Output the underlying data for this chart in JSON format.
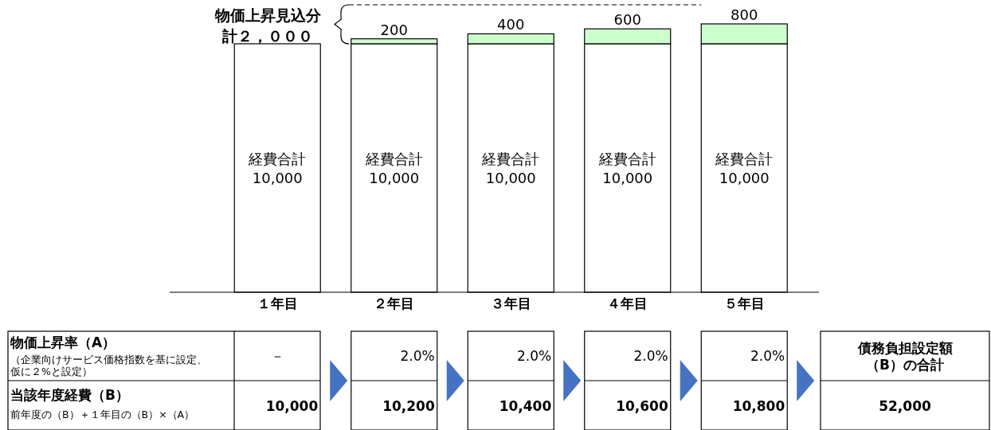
{
  "chart_data": {
    "type": "bar",
    "stacked": true,
    "categories": [
      "１年目",
      "２年目",
      "３年目",
      "４年目",
      "５年目"
    ],
    "series": [
      {
        "name": null,
        "color": "#ffffff",
        "values": [
          10000,
          10000,
          10000,
          10000,
          10000
        ],
        "value_labels": [
          "経費合計\n10,000",
          "経費合計\n10,000",
          "経費合計\n10,000",
          "経費合計\n10,000",
          "経費合計\n10,000"
        ]
      },
      {
        "name": null,
        "color": "#ccffcc",
        "values": [
          null,
          200,
          400,
          600,
          800
        ],
        "value_labels": [
          null,
          "200",
          "400",
          "600",
          "800"
        ]
      }
    ],
    "ylim": [
      0,
      10800
    ],
    "tick_labels": "x",
    "annotations": [
      "物価上昇見込分計２，０００",
      "物価上昇率（A）",
      "（企業向けサービス価格指数を基に設定、仮に２%と設定）",
      "当該年度経費（B）",
      "前年度の（B）＋１年目の（B）×（A）",
      "－",
      "2.0%",
      "2.0%",
      "2.0%",
      "2.0%",
      "10,000",
      "10,200",
      "10,400",
      "10,600",
      "10,800",
      "債務負担設定額（B）の合計",
      "52,000"
    ]
  }
}
